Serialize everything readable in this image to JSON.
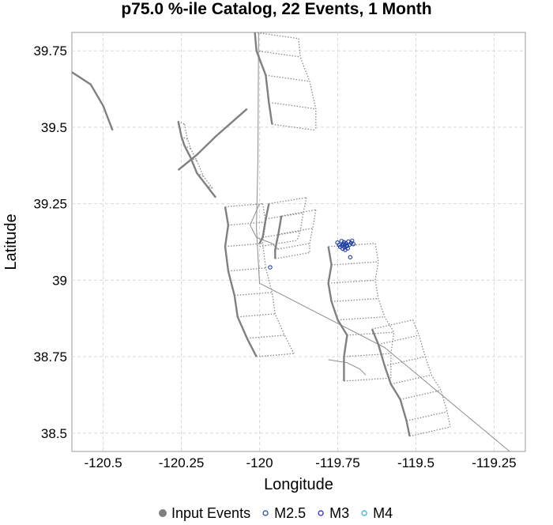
{
  "chart_data": {
    "type": "scatter",
    "title": "p75.0 %-ile Catalog, 22 Events, 1 Month",
    "xlabel": "Longitude",
    "ylabel": "Latitude",
    "xlim": [
      -120.6,
      -119.15
    ],
    "ylim": [
      38.44,
      39.81
    ],
    "x_ticks": [
      -120.5,
      -120.25,
      -120,
      -119.75,
      -119.5,
      -119.25
    ],
    "x_tick_labels": [
      "-120.5",
      "-120.25",
      "-120",
      "-119.75",
      "-119.5",
      "-119.25"
    ],
    "y_ticks": [
      38.5,
      38.75,
      39,
      39.25,
      39.5,
      39.75
    ],
    "y_tick_labels": [
      "38.5",
      "38.75",
      "39",
      "39.25",
      "39.5",
      "39.75"
    ],
    "grid": true,
    "legend_position": "bottom",
    "legend": [
      {
        "label": "Input Events",
        "marker": "filled-circle",
        "color": "#808080"
      },
      {
        "label": "M2.5",
        "marker": "open-circle",
        "color": "#1e3fa0"
      },
      {
        "label": "M3",
        "marker": "open-circle",
        "color": "#1a1ad0"
      },
      {
        "label": "M4",
        "marker": "open-circle",
        "color": "#1ab0e0"
      }
    ],
    "series": [
      {
        "name": "M2.5",
        "color": "#1e3fa0",
        "points": [
          [
            -119.751,
            39.123
          ],
          [
            -119.745,
            39.115
          ],
          [
            -119.738,
            39.128
          ],
          [
            -119.732,
            39.118
          ],
          [
            -119.728,
            39.107
          ],
          [
            -119.724,
            39.121
          ],
          [
            -119.72,
            39.113
          ],
          [
            -119.716,
            39.126
          ],
          [
            -119.712,
            39.116
          ],
          [
            -119.734,
            39.103
          ],
          [
            -119.742,
            39.109
          ],
          [
            -119.726,
            39.099
          ],
          [
            -119.718,
            39.104
          ],
          [
            -119.73,
            39.124
          ],
          [
            -119.722,
            39.111
          ],
          [
            -119.707,
            39.122
          ],
          [
            -119.7,
            39.118
          ],
          [
            -119.736,
            39.113
          ],
          [
            -119.727,
            39.116
          ],
          [
            -119.71,
            39.075
          ],
          [
            -119.966,
            39.042
          ],
          [
            -119.704,
            39.129
          ]
        ]
      }
    ],
    "fault_traces": [
      [
        [
          -120.6,
          39.68
        ],
        [
          -120.54,
          39.64
        ],
        [
          -120.5,
          39.57
        ],
        [
          -120.47,
          39.49
        ]
      ],
      [
        [
          -120.26,
          39.36
        ],
        [
          -120.2,
          39.41
        ],
        [
          -120.14,
          39.47
        ],
        [
          -120.04,
          39.56
        ]
      ],
      [
        [
          -120.26,
          39.52
        ],
        [
          -120.25,
          39.47
        ],
        [
          -120.24,
          39.44
        ],
        [
          -120.22,
          39.4
        ],
        [
          -120.2,
          39.35
        ],
        [
          -120.17,
          39.31
        ],
        [
          -120.14,
          39.27
        ]
      ],
      [
        [
          -120.015,
          39.81
        ],
        [
          -120.01,
          39.75
        ],
        [
          -119.98,
          39.67
        ],
        [
          -119.97,
          39.58
        ],
        [
          -119.96,
          39.51
        ]
      ],
      [
        [
          -120.11,
          39.24
        ],
        [
          -120.1,
          39.18
        ],
        [
          -120.11,
          39.11
        ],
        [
          -120.1,
          39.03
        ],
        [
          -120.08,
          38.95
        ],
        [
          -120.07,
          38.88
        ],
        [
          -120.04,
          38.81
        ],
        [
          -120.01,
          38.75
        ]
      ],
      [
        [
          -119.97,
          39.25
        ],
        [
          -119.98,
          39.2
        ],
        [
          -119.99,
          39.14
        ],
        [
          -120.0,
          39.12
        ]
      ],
      [
        [
          -119.93,
          39.21
        ],
        [
          -119.94,
          39.15
        ],
        [
          -119.95,
          39.1
        ],
        [
          -119.95,
          39.07
        ]
      ],
      [
        [
          -119.78,
          39.11
        ],
        [
          -119.77,
          39.05
        ],
        [
          -119.78,
          38.99
        ],
        [
          -119.77,
          38.93
        ],
        [
          -119.75,
          38.87
        ],
        [
          -119.72,
          38.82
        ],
        [
          -119.73,
          38.75
        ],
        [
          -119.73,
          38.67
        ]
      ],
      [
        [
          -119.64,
          38.84
        ],
        [
          -119.62,
          38.79
        ],
        [
          -119.6,
          38.72
        ],
        [
          -119.58,
          38.66
        ],
        [
          -119.55,
          38.61
        ],
        [
          -119.53,
          38.54
        ],
        [
          -119.52,
          38.49
        ]
      ]
    ],
    "fault_section_lines": [
      [
        [
          -120.003,
          39.81
        ],
        [
          -120.005,
          39.4
        ],
        [
          -120.01,
          39.17
        ],
        [
          -120.0,
          38.99
        ],
        [
          -119.6,
          38.78
        ],
        [
          -119.2,
          38.44
        ]
      ],
      [
        [
          -120.0,
          39.25
        ],
        [
          -120.03,
          39.18
        ],
        [
          -120.01,
          39.14
        ],
        [
          -119.96,
          39.12
        ],
        [
          -119.94,
          39.1
        ]
      ],
      [
        [
          -119.78,
          38.74
        ],
        [
          -119.72,
          38.73
        ],
        [
          -119.68,
          38.71
        ],
        [
          -119.66,
          38.69
        ]
      ]
    ],
    "fault_sections": [
      {
        "trace": [
          [
            -120.015,
            39.81
          ],
          [
            -120.01,
            39.75
          ],
          [
            -119.98,
            39.67
          ],
          [
            -119.96,
            39.58
          ],
          [
            -119.96,
            39.51
          ]
        ],
        "dx": 0.14,
        "dy": -0.02
      },
      {
        "trace": [
          [
            -120.26,
            39.52
          ],
          [
            -120.25,
            39.47
          ],
          [
            -120.24,
            39.44
          ],
          [
            -120.22,
            39.4
          ],
          [
            -120.2,
            39.35
          ],
          [
            -120.17,
            39.31
          ]
        ],
        "dx": 0.02,
        "dy": -0.01
      },
      {
        "trace": [
          [
            -120.11,
            39.24
          ],
          [
            -120.1,
            39.18
          ],
          [
            -120.11,
            39.11
          ],
          [
            -120.1,
            39.03
          ],
          [
            -120.08,
            38.95
          ],
          [
            -120.07,
            38.88
          ],
          [
            -120.04,
            38.81
          ],
          [
            -120.01,
            38.75
          ]
        ],
        "dx": 0.12,
        "dy": 0.01
      },
      {
        "trace": [
          [
            -119.97,
            39.25
          ],
          [
            -119.98,
            39.2
          ],
          [
            -119.99,
            39.14
          ],
          [
            -120.0,
            39.11
          ]
        ],
        "dx": 0.12,
        "dy": 0.02
      },
      {
        "trace": [
          [
            -119.93,
            39.21
          ],
          [
            -119.94,
            39.15
          ],
          [
            -119.95,
            39.1
          ],
          [
            -119.95,
            39.07
          ]
        ],
        "dx": 0.11,
        "dy": 0.02
      },
      {
        "trace": [
          [
            -119.78,
            39.11
          ],
          [
            -119.77,
            39.05
          ],
          [
            -119.78,
            38.99
          ],
          [
            -119.77,
            38.93
          ],
          [
            -119.75,
            38.87
          ],
          [
            -119.72,
            38.82
          ],
          [
            -119.73,
            38.75
          ],
          [
            -119.73,
            38.67
          ]
        ],
        "dx": 0.15,
        "dy": 0.01
      },
      {
        "trace": [
          [
            -119.64,
            38.84
          ],
          [
            -119.62,
            38.79
          ],
          [
            -119.6,
            38.72
          ],
          [
            -119.58,
            38.66
          ],
          [
            -119.55,
            38.61
          ],
          [
            -119.53,
            38.54
          ],
          [
            -119.52,
            38.49
          ]
        ],
        "dx": 0.13,
        "dy": 0.03
      }
    ]
  }
}
